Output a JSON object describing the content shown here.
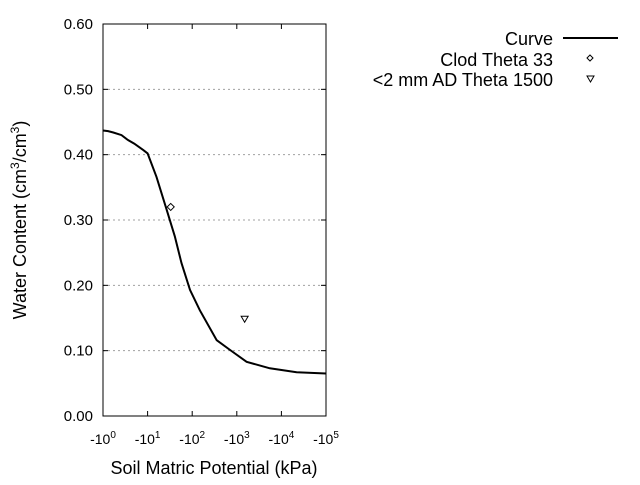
{
  "chart_data": {
    "type": "line",
    "title": "",
    "xlabel": "Soil Matric Potential (kPa)",
    "ylabel_parts": [
      "Water Content (cm",
      "3",
      "/cm",
      "3",
      ")"
    ],
    "x_scale": "log",
    "xlim": [
      1,
      100000
    ],
    "ylim": [
      0,
      0.6
    ],
    "x_ticks": [
      {
        "value": 1,
        "base": "-10",
        "exp": "0"
      },
      {
        "value": 10,
        "base": "-10",
        "exp": "1"
      },
      {
        "value": 100,
        "base": "-10",
        "exp": "2"
      },
      {
        "value": 1000,
        "base": "-10",
        "exp": "3"
      },
      {
        "value": 10000,
        "base": "-10",
        "exp": "4"
      },
      {
        "value": 100000,
        "base": "-10",
        "exp": "5"
      }
    ],
    "y_ticks": [
      {
        "value": 0.0,
        "label": "0.00"
      },
      {
        "value": 0.1,
        "label": "0.10"
      },
      {
        "value": 0.2,
        "label": "0.20"
      },
      {
        "value": 0.3,
        "label": "0.30"
      },
      {
        "value": 0.4,
        "label": "0.40"
      },
      {
        "value": 0.5,
        "label": "0.50"
      },
      {
        "value": 0.6,
        "label": "0.60"
      }
    ],
    "grid": "horizontal dotted",
    "legend_position": "top-right outside",
    "series": [
      {
        "name": "Curve",
        "kind": "line",
        "color": "#000000",
        "x": [
          1,
          1.3,
          1.7,
          2.6,
          3.5,
          5,
          8,
          10,
          15.8,
          26.9,
          40.7,
          57.5,
          89.1,
          148,
          355,
          708,
          1660,
          5500,
          21900,
          100000
        ],
        "y": [
          0.437,
          0.436,
          0.434,
          0.43,
          0.423,
          0.417,
          0.407,
          0.402,
          0.366,
          0.315,
          0.275,
          0.234,
          0.193,
          0.162,
          0.116,
          0.101,
          0.083,
          0.073,
          0.067,
          0.065
        ]
      },
      {
        "name": "Clod Theta 33",
        "kind": "marker",
        "marker": "diamond",
        "x": [
          33
        ],
        "y": [
          0.32
        ]
      },
      {
        "name": "<2 mm AD Theta 1500",
        "kind": "marker",
        "marker": "triangle-down",
        "x": [
          1500
        ],
        "y": [
          0.148
        ]
      }
    ]
  }
}
